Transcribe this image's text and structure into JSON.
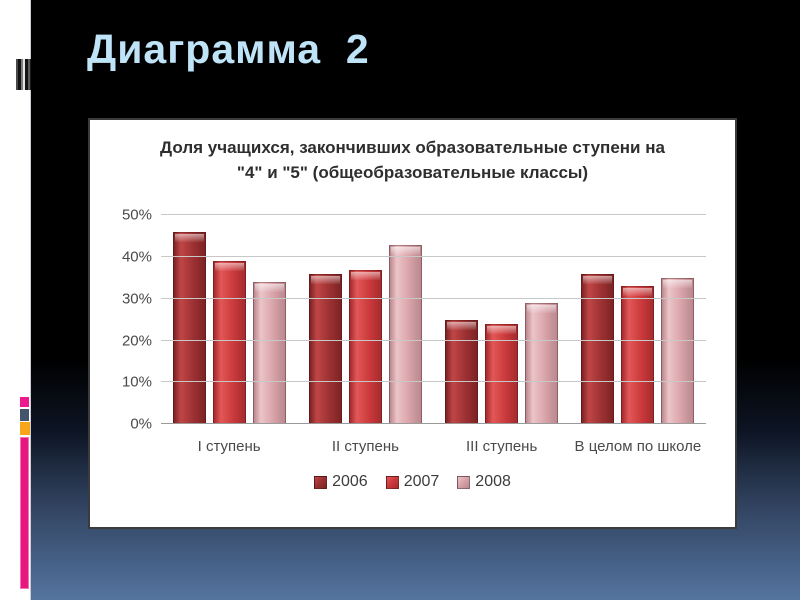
{
  "slide": {
    "title": "Диаграмма  2",
    "title_color": "#bfe3f7",
    "background": {
      "top": "#000000",
      "bottom": "#54749f"
    }
  },
  "decorations": {
    "filmstrip_icon": "film-strip-icon",
    "markers": [
      {
        "name": "magenta-small-marker",
        "color": "#ec1a8a"
      },
      {
        "name": "slate-marker",
        "color": "#44546a"
      },
      {
        "name": "orange-marker",
        "color": "#f9a51a"
      },
      {
        "name": "magenta-tall-bar",
        "color": "#e6187f"
      }
    ]
  },
  "chart_data": {
    "type": "bar",
    "title": "Доля учащихся, закончивших образовательные ступени на \"4\" и \"5\" (общеобразовательные классы)",
    "categories": [
      "I ступень",
      "II ступень",
      "III ступень",
      "В целом по школе"
    ],
    "series": [
      {
        "name": "2006",
        "values": [
          46,
          36,
          25,
          36
        ],
        "color": {
          "base": "#9e3132",
          "light": "#bf4647",
          "dark": "#7c2324"
        }
      },
      {
        "name": "2007",
        "values": [
          39,
          37,
          24,
          33
        ],
        "color": {
          "base": "#cc3a3c",
          "light": "#e25757",
          "dark": "#a52b2d"
        }
      },
      {
        "name": "2008",
        "values": [
          34,
          43,
          29,
          35
        ],
        "color": {
          "base": "#d8a3a9",
          "light": "#ecc4c8",
          "dark": "#bb8890"
        }
      }
    ],
    "y_ticks": [
      "0%",
      "10%",
      "20%",
      "30%",
      "40%",
      "50%"
    ],
    "ylim": [
      0,
      50
    ],
    "grid": true,
    "legend_position": "bottom",
    "axis_text_color": "#4a4a4a",
    "gridline_color": "#c8c8c8"
  }
}
